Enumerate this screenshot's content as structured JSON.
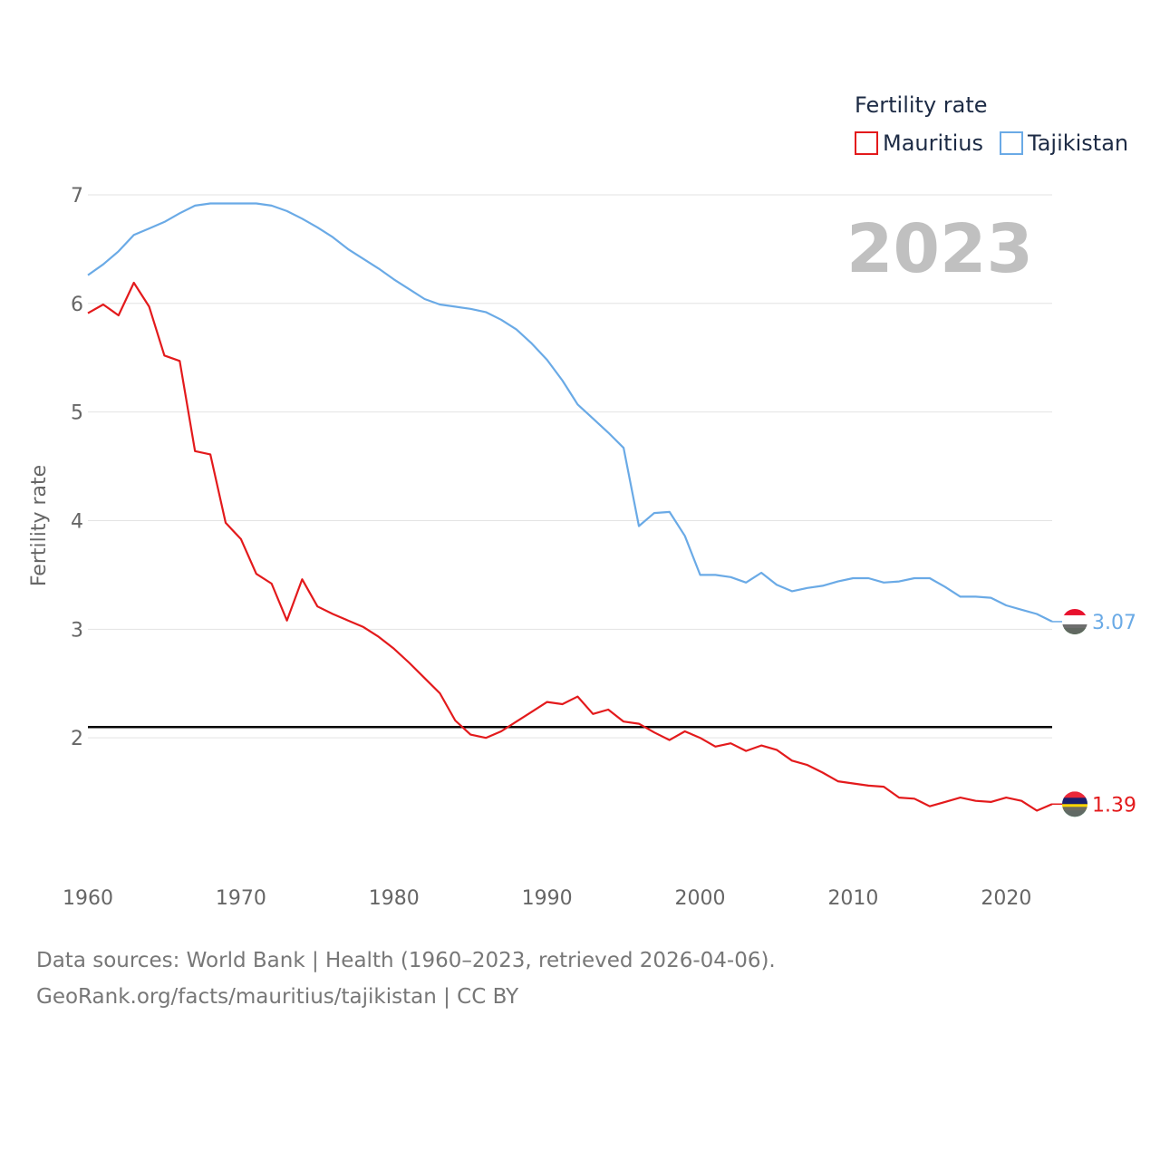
{
  "chart_data": {
    "type": "line",
    "title": "",
    "legend_title": "Fertility rate",
    "year_label": "2023",
    "ylabel": "Fertility rate",
    "xlabel": "",
    "xlim": [
      1960,
      2023
    ],
    "ylim": [
      0.9,
      7.3
    ],
    "x_ticks": [
      1960,
      1970,
      1980,
      1990,
      2000,
      2010,
      2020
    ],
    "y_ticks": [
      2,
      3,
      4,
      5,
      6,
      7
    ],
    "reference_line": {
      "value": 2.1,
      "color": "#000000"
    },
    "x": [
      1960,
      1961,
      1962,
      1963,
      1964,
      1965,
      1966,
      1967,
      1968,
      1969,
      1970,
      1971,
      1972,
      1973,
      1974,
      1975,
      1976,
      1977,
      1978,
      1979,
      1980,
      1981,
      1982,
      1983,
      1984,
      1985,
      1986,
      1987,
      1988,
      1989,
      1990,
      1991,
      1992,
      1993,
      1994,
      1995,
      1996,
      1997,
      1998,
      1999,
      2000,
      2001,
      2002,
      2003,
      2004,
      2005,
      2006,
      2007,
      2008,
      2009,
      2010,
      2011,
      2012,
      2013,
      2014,
      2015,
      2016,
      2017,
      2018,
      2019,
      2020,
      2021,
      2022,
      2023
    ],
    "series": [
      {
        "name": "Mauritius",
        "color": "#e31a1c",
        "end_label": "1.39",
        "values": [
          5.91,
          5.99,
          5.89,
          6.19,
          5.97,
          5.52,
          5.47,
          4.64,
          4.61,
          3.98,
          3.83,
          3.51,
          3.42,
          3.08,
          3.46,
          3.21,
          3.14,
          3.08,
          3.02,
          2.93,
          2.82,
          2.69,
          2.55,
          2.41,
          2.16,
          2.03,
          2.0,
          2.06,
          2.15,
          2.24,
          2.33,
          2.31,
          2.38,
          2.22,
          2.26,
          2.15,
          2.13,
          2.05,
          1.98,
          2.06,
          2.0,
          1.92,
          1.95,
          1.88,
          1.93,
          1.89,
          1.79,
          1.75,
          1.68,
          1.6,
          1.58,
          1.56,
          1.55,
          1.45,
          1.44,
          1.37,
          1.41,
          1.45,
          1.42,
          1.41,
          1.45,
          1.42,
          1.33,
          1.39
        ]
      },
      {
        "name": "Tajikistan",
        "color": "#6aaae6",
        "end_label": "3.07",
        "values": [
          6.26,
          6.36,
          6.48,
          6.63,
          6.69,
          6.75,
          6.83,
          6.9,
          6.92,
          6.92,
          6.92,
          6.92,
          6.9,
          6.85,
          6.78,
          6.7,
          6.61,
          6.5,
          6.41,
          6.32,
          6.22,
          6.13,
          6.04,
          5.99,
          5.97,
          5.95,
          5.92,
          5.85,
          5.76,
          5.63,
          5.48,
          5.29,
          5.07,
          4.94,
          4.81,
          4.67,
          3.95,
          4.07,
          4.08,
          3.86,
          3.5,
          3.5,
          3.48,
          3.43,
          3.52,
          3.41,
          3.35,
          3.38,
          3.4,
          3.44,
          3.47,
          3.47,
          3.43,
          3.44,
          3.47,
          3.47,
          3.39,
          3.3,
          3.3,
          3.29,
          3.22,
          3.18,
          3.14,
          3.07
        ]
      }
    ]
  },
  "source": {
    "line1": "Data sources: World Bank | Health (1960–2023, retrieved 2026-04-06).",
    "line2": "GeoRank.org/facts/mauritius/tajikistan | CC BY"
  }
}
